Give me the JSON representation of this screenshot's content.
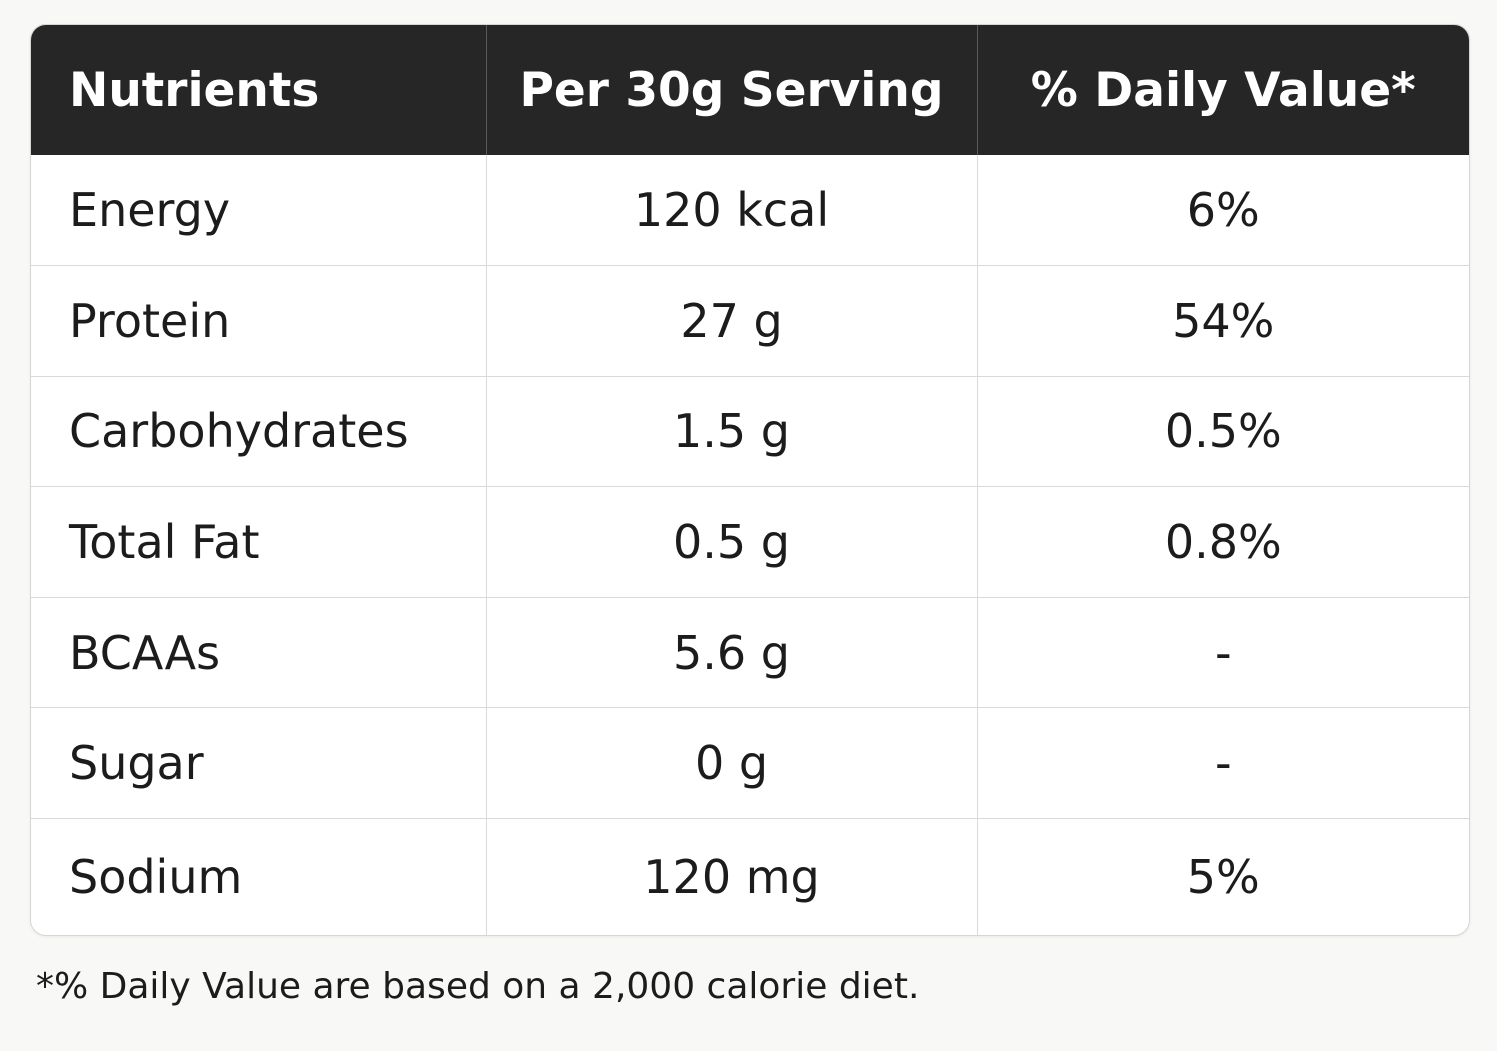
{
  "table": {
    "headers": [
      "Nutrients",
      "Per 30g Serving",
      "% Daily Value*"
    ],
    "rows": [
      {
        "nutrient": "Energy",
        "per_serving": "120 kcal",
        "daily_value": "6%"
      },
      {
        "nutrient": "Protein",
        "per_serving": "27 g",
        "daily_value": "54%"
      },
      {
        "nutrient": "Carbohydrates",
        "per_serving": "1.5 g",
        "daily_value": "0.5%"
      },
      {
        "nutrient": "Total Fat",
        "per_serving": "0.5 g",
        "daily_value": "0.8%"
      },
      {
        "nutrient": "BCAAs",
        "per_serving": "5.6 g",
        "daily_value": "-"
      },
      {
        "nutrient": "Sugar",
        "per_serving": "0 g",
        "daily_value": "-"
      },
      {
        "nutrient": "Sodium",
        "per_serving": "120 mg",
        "daily_value": "5%"
      }
    ]
  },
  "footnote": "*% Daily Value are based on a 2,000 calorie diet.",
  "colors": {
    "header_bg": "#262626",
    "header_text": "#ffffff",
    "body_text": "#1c1c1c",
    "page_bg": "#f8f8f6"
  }
}
